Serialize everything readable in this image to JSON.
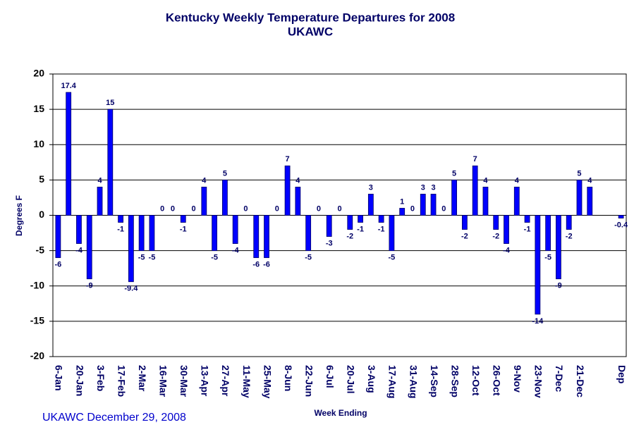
{
  "chart_data": {
    "type": "bar",
    "title": "Kentucky Weekly Temperature Departures for 2008",
    "subtitle": "UKAWC",
    "x_label": "Week Ending",
    "y_label": "Degrees F",
    "annotation": "UKAWC December 29, 2008",
    "categories": [
      "6-Jan",
      null,
      "20-Jan",
      null,
      "3-Feb",
      null,
      "17-Feb",
      null,
      "2-Mar",
      null,
      "16-Mar",
      null,
      "30-Mar",
      null,
      "13-Apr",
      null,
      "27-Apr",
      null,
      "11-May",
      null,
      "25-May",
      null,
      "8-Jun",
      null,
      "22-Jun",
      null,
      "6-Jul",
      null,
      "20-Jul",
      null,
      "3-Aug",
      null,
      "17-Aug",
      null,
      "31-Aug",
      null,
      "14-Sep",
      null,
      "28-Sep",
      null,
      "12-Oct",
      null,
      "26-Oct",
      null,
      "9-Nov",
      null,
      "23-Nov",
      null,
      "7-Dec",
      null,
      "21-Dec",
      null,
      null,
      null,
      "Dep"
    ],
    "values": [
      -6,
      17.4,
      -4,
      -9,
      4,
      15,
      -1,
      -9.4,
      -5,
      -5,
      0,
      0,
      -1,
      0,
      4,
      -5,
      5,
      -4,
      0,
      -6,
      -6,
      0,
      7,
      4,
      -5,
      0,
      -3,
      0,
      -2,
      -1,
      3,
      -1,
      -5,
      1,
      0,
      3,
      3,
      0,
      5,
      -2,
      7,
      4,
      -2,
      -4,
      4,
      -1,
      -14,
      -5,
      -9,
      -2,
      5,
      4,
      null,
      null,
      -0.4
    ],
    "color": "#0000ff",
    "ylim": [
      -20,
      20
    ],
    "yticks": [
      -20,
      -15,
      -10,
      -5,
      0,
      5,
      10,
      15,
      20
    ],
    "grid": true
  }
}
